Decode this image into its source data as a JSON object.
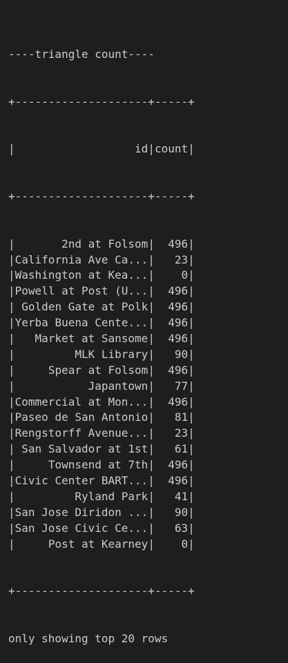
{
  "terminal": {
    "header_line": "----triangle count----",
    "border_line": "+--------------------+-----+",
    "columns": [
      "id",
      "count"
    ],
    "rows": [
      {
        "id": "2nd at Folsom",
        "count": "496"
      },
      {
        "id": "California Ave Ca...",
        "count": "23"
      },
      {
        "id": "Washington at Kea...",
        "count": "0"
      },
      {
        "id": "Powell at Post (U...",
        "count": "496"
      },
      {
        "id": "Golden Gate at Polk",
        "count": "496"
      },
      {
        "id": "Yerba Buena Cente...",
        "count": "496"
      },
      {
        "id": "Market at Sansome",
        "count": "496"
      },
      {
        "id": "MLK Library",
        "count": "90"
      },
      {
        "id": "Spear at Folsom",
        "count": "496"
      },
      {
        "id": "Japantown",
        "count": "77"
      },
      {
        "id": "Commercial at Mon...",
        "count": "496"
      },
      {
        "id": "Paseo de San Antonio",
        "count": "81"
      },
      {
        "id": "Rengstorff Avenue...",
        "count": "23"
      },
      {
        "id": "San Salvador at 1st",
        "count": "61"
      },
      {
        "id": "Townsend at 7th",
        "count": "496"
      },
      {
        "id": "Civic Center BART...",
        "count": "496"
      },
      {
        "id": "Ryland Park",
        "count": "41"
      },
      {
        "id": "San Jose Diridon ...",
        "count": "90"
      },
      {
        "id": "San Jose Civic Ce...",
        "count": "63"
      },
      {
        "id": "Post at Kearney",
        "count": "0"
      }
    ],
    "footer_line": "only showing top 20 rows"
  }
}
